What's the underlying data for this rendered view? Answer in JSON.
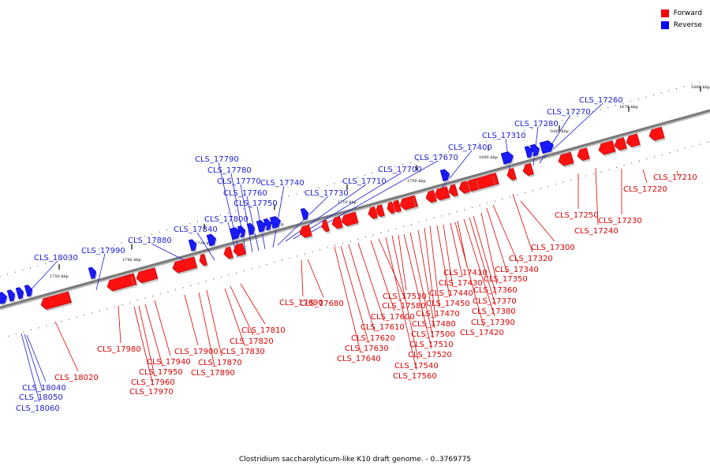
{
  "legend": [
    {
      "label": "Forward",
      "color": "#ff0000"
    },
    {
      "label": "Reverse",
      "color": "#0000ff"
    }
  ],
  "caption": "Clostridium saccharolyticum-like K10 draft genome. - 0..3769775",
  "tick_labels": [
    "1660 kbp",
    "1670 kbp",
    "1680 kbp",
    "1690 kbp",
    "1700 kbp",
    "1710 kbp",
    "1720 kbp",
    "1730 kbp",
    "1740 kbp",
    "1750 kbp"
  ],
  "forward_genes": [
    "CLS_17210",
    "CLS_17220",
    "CLS_17230",
    "CLS_17240",
    "CLS_17250",
    "CLS_17300",
    "CLS_17320",
    "CLS_17340",
    "CLS_17350",
    "CLS_17360",
    "CLS_17370",
    "CLS_17380",
    "CLS_17390",
    "CLS_17410",
    "CLS_17420",
    "CLS_17430",
    "CLS_17440",
    "CLS_17450",
    "CLS_17470",
    "CLS_17480",
    "CLS_17500",
    "CLS_17510",
    "CLS_17520",
    "CLS_17530",
    "CLS_17540",
    "CLS_17560",
    "CLS_17580",
    "CLS_17600",
    "CLS_17610",
    "CLS_17620",
    "CLS_17630",
    "CLS_17640",
    "CLS_17680",
    "CLS_17690",
    "CLS_17810",
    "CLS_17820",
    "CLS_17830",
    "CLS_17870",
    "CLS_17890",
    "CLS_17900",
    "CLS_17940",
    "CLS_17950",
    "CLS_17960",
    "CLS_17970",
    "CLS_17980",
    "CLS_18020"
  ],
  "reverse_genes": [
    "CLS_17260",
    "CLS_17270",
    "CLS_17280",
    "CLS_17310",
    "CLS_17400",
    "CLS_17670",
    "CLS_17700",
    "CLS_17710",
    "CLS_17730",
    "CLS_17740",
    "CLS_17750",
    "CLS_17760",
    "CLS_17770",
    "CLS_17780",
    "CLS_17790",
    "CLS_17800",
    "CLS_17840",
    "CLS_17880",
    "CLS_17990",
    "CLS_18030",
    "CLS_18040",
    "CLS_18050",
    "CLS_18060"
  ]
}
